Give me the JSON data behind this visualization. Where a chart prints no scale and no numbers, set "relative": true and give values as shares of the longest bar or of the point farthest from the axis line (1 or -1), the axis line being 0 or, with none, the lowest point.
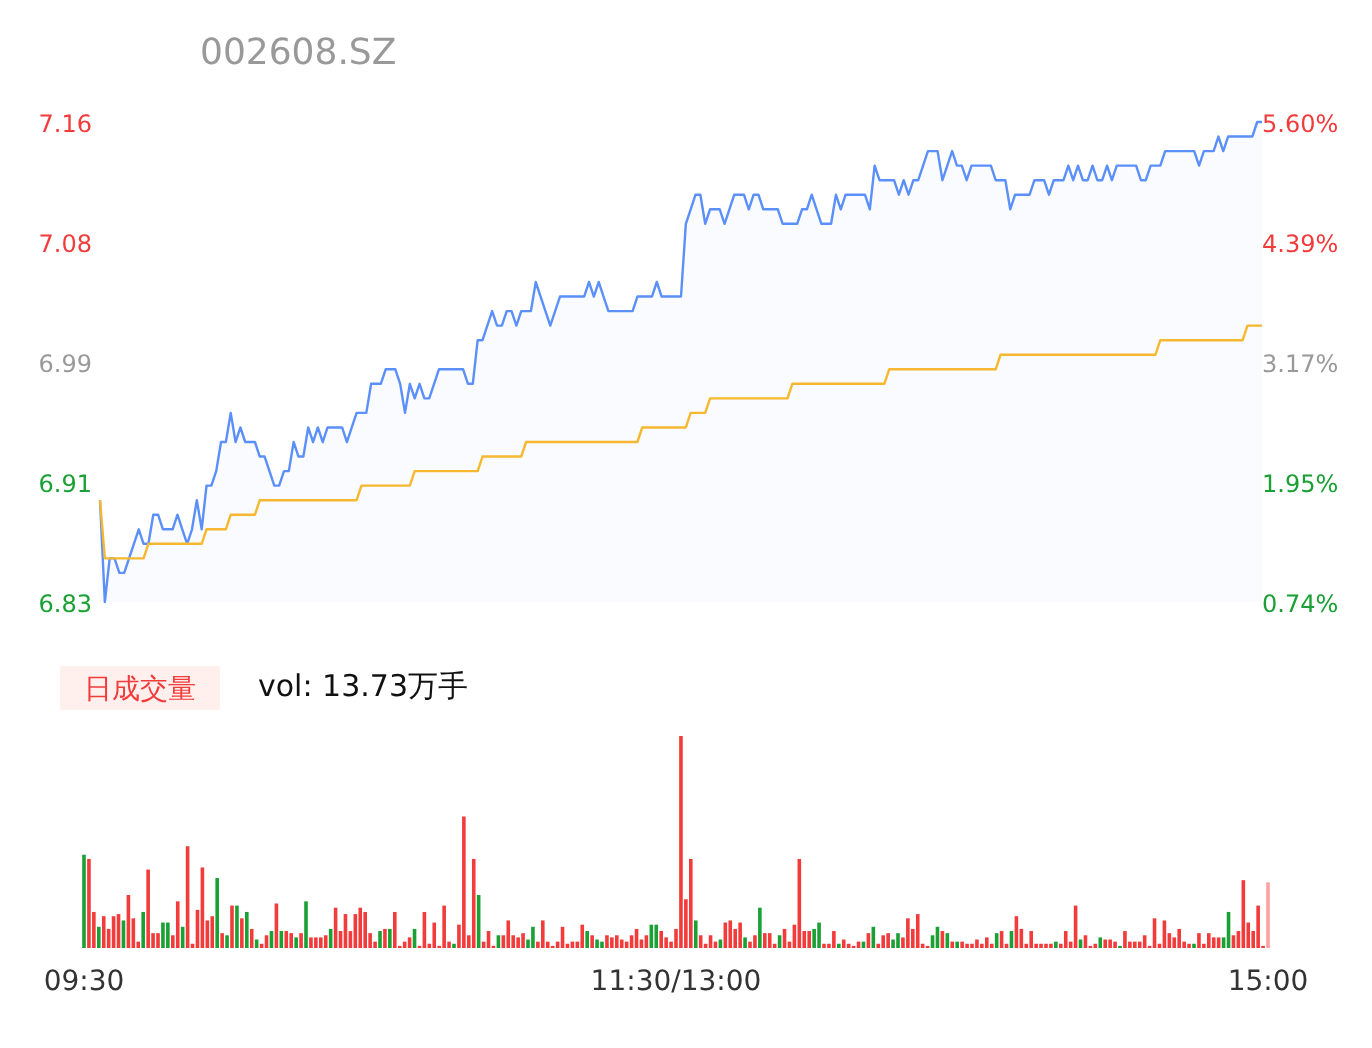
{
  "chart_data": [
    {
      "type": "line",
      "title": "002608.SZ",
      "tick_labels": "y",
      "ylim": [
        6.83,
        7.16
      ],
      "categories": [
        null,
        null,
        null,
        null,
        null,
        null,
        null,
        null,
        null,
        null,
        null,
        null,
        null,
        null,
        null,
        null,
        null,
        null,
        null,
        null,
        null,
        null,
        null,
        null,
        null,
        null,
        null,
        null,
        null,
        null,
        null,
        null,
        null,
        null,
        null,
        null,
        null,
        null,
        null,
        null,
        null,
        null,
        null,
        null,
        null,
        null,
        null,
        null,
        null,
        null,
        null,
        null,
        null,
        null,
        null,
        null,
        null,
        null,
        null,
        null,
        null,
        null,
        null,
        null,
        null,
        null,
        null,
        null,
        null,
        null,
        null,
        null,
        null,
        null,
        null,
        null,
        null,
        null,
        null,
        null,
        null,
        null,
        null,
        null,
        null,
        null,
        null,
        null,
        null,
        null,
        null,
        null,
        null,
        null,
        null,
        null,
        null,
        null,
        null,
        null,
        null,
        null,
        null,
        null,
        null,
        null,
        null,
        null,
        null,
        null,
        null,
        null,
        null,
        null,
        null,
        null,
        null,
        null,
        null,
        null,
        null,
        null,
        null,
        null,
        null,
        null,
        null,
        null,
        null,
        null,
        null,
        null,
        null,
        null,
        null,
        null,
        null,
        null,
        null,
        null,
        null,
        null,
        null,
        null,
        null,
        null,
        null,
        null,
        null,
        null,
        null,
        null,
        null,
        null,
        null,
        null,
        null,
        null,
        null,
        null,
        null,
        null,
        null,
        null,
        null,
        null,
        null,
        null,
        null,
        null,
        null,
        null,
        null,
        null,
        null,
        null,
        null,
        null,
        null,
        null,
        null,
        null,
        null,
        null,
        null,
        null,
        null,
        null,
        null,
        null,
        null,
        null,
        null,
        null,
        null,
        null,
        null,
        null,
        null,
        null,
        null,
        null,
        null,
        null,
        null,
        null,
        null,
        null,
        null,
        null,
        null,
        null,
        null,
        null,
        null,
        null,
        null,
        null,
        null,
        null,
        null,
        null,
        null,
        null,
        null,
        null,
        null,
        null,
        null,
        null,
        null,
        null,
        null,
        null,
        null,
        null,
        null,
        null,
        null,
        null,
        null
      ],
      "yticks": [
        {
          "value": 6.83,
          "label": "6.83"
        },
        {
          "value": 6.9125,
          "label": "6.91"
        },
        {
          "value": 6.995,
          "label": "6.99"
        },
        {
          "value": 7.0775,
          "label": "7.08"
        },
        {
          "value": 7.16,
          "label": "7.16"
        }
      ],
      "y2lim": [
        0.74,
        5.6
      ],
      "y2ticks": [
        {
          "value": 0.74,
          "label": "0.74%"
        },
        {
          "value": 1.955,
          "label": "1.95%"
        },
        {
          "value": 3.17,
          "label": "3.17%"
        },
        {
          "value": 4.385,
          "label": "4.39%"
        },
        {
          "value": 5.6,
          "label": "5.60%"
        }
      ],
      "series": [
        {
          "type": "area",
          "color": "#5b8ff9",
          "values": [
            6.9,
            6.83,
            6.86,
            6.86,
            6.85,
            6.85,
            6.86,
            6.87,
            6.88,
            6.87,
            6.87,
            6.89,
            6.89,
            6.88,
            6.88,
            6.88,
            6.89,
            6.88,
            6.87,
            6.88,
            6.9,
            6.88,
            6.91,
            6.91,
            6.92,
            6.94,
            6.94,
            6.96,
            6.94,
            6.95,
            6.94,
            6.94,
            6.94,
            6.93,
            6.93,
            6.92,
            6.91,
            6.91,
            6.92,
            6.92,
            6.94,
            6.93,
            6.93,
            6.95,
            6.94,
            6.95,
            6.94,
            6.95,
            6.95,
            6.95,
            6.95,
            6.94,
            6.95,
            6.96,
            6.96,
            6.96,
            6.98,
            6.98,
            6.98,
            6.99,
            6.99,
            6.99,
            6.98,
            6.96,
            6.98,
            6.97,
            6.98,
            6.97,
            6.97,
            6.98,
            6.99,
            6.99,
            6.99,
            6.99,
            6.99,
            6.99,
            6.98,
            6.98,
            7.01,
            7.01,
            7.02,
            7.03,
            7.02,
            7.02,
            7.03,
            7.03,
            7.02,
            7.03,
            7.03,
            7.03,
            7.05,
            7.04,
            7.03,
            7.02,
            7.03,
            7.04,
            7.04,
            7.04,
            7.04,
            7.04,
            7.04,
            7.05,
            7.04,
            7.05,
            7.04,
            7.03,
            7.03,
            7.03,
            7.03,
            7.03,
            7.03,
            7.04,
            7.04,
            7.04,
            7.04,
            7.05,
            7.04,
            7.04,
            7.04,
            7.04,
            7.04,
            7.09,
            7.1,
            7.11,
            7.11,
            7.09,
            7.1,
            7.1,
            7.1,
            7.09,
            7.1,
            7.11,
            7.11,
            7.11,
            7.1,
            7.11,
            7.11,
            7.1,
            7.1,
            7.1,
            7.1,
            7.09,
            7.09,
            7.09,
            7.09,
            7.1,
            7.1,
            7.11,
            7.1,
            7.09,
            7.09,
            7.09,
            7.11,
            7.1,
            7.11,
            7.11,
            7.11,
            7.11,
            7.11,
            7.1,
            7.13,
            7.12,
            7.12,
            7.12,
            7.12,
            7.11,
            7.12,
            7.11,
            7.12,
            7.12,
            7.13,
            7.14,
            7.14,
            7.14,
            7.12,
            7.13,
            7.14,
            7.13,
            7.13,
            7.12,
            7.13,
            7.13,
            7.13,
            7.13,
            7.13,
            7.12,
            7.12,
            7.12,
            7.1,
            7.11,
            7.11,
            7.11,
            7.11,
            7.12,
            7.12,
            7.12,
            7.11,
            7.12,
            7.12,
            7.12,
            7.13,
            7.12,
            7.13,
            7.12,
            7.12,
            7.13,
            7.12,
            7.12,
            7.13,
            7.12,
            7.13,
            7.13,
            7.13,
            7.13,
            7.13,
            7.12,
            7.12,
            7.13,
            7.13,
            7.13,
            7.14,
            7.14,
            7.14,
            7.14,
            7.14,
            7.14,
            7.14,
            7.13,
            7.14,
            7.14,
            7.14,
            7.15,
            7.14,
            7.15,
            7.15,
            7.15,
            7.15,
            7.15,
            7.15,
            7.16,
            7.16
          ]
        },
        {
          "type": "line",
          "color": "#f5b82e",
          "values": [
            6.9,
            6.86,
            6.86,
            6.86,
            6.86,
            6.86,
            6.86,
            6.86,
            6.86,
            6.86,
            6.87,
            6.87,
            6.87,
            6.87,
            6.87,
            6.87,
            6.87,
            6.87,
            6.87,
            6.87,
            6.87,
            6.87,
            6.88,
            6.88,
            6.88,
            6.88,
            6.88,
            6.89,
            6.89,
            6.89,
            6.89,
            6.89,
            6.89,
            6.9,
            6.9,
            6.9,
            6.9,
            6.9,
            6.9,
            6.9,
            6.9,
            6.9,
            6.9,
            6.9,
            6.9,
            6.9,
            6.9,
            6.9,
            6.9,
            6.9,
            6.9,
            6.9,
            6.9,
            6.9,
            6.91,
            6.91,
            6.91,
            6.91,
            6.91,
            6.91,
            6.91,
            6.91,
            6.91,
            6.91,
            6.91,
            6.92,
            6.92,
            6.92,
            6.92,
            6.92,
            6.92,
            6.92,
            6.92,
            6.92,
            6.92,
            6.92,
            6.92,
            6.92,
            6.92,
            6.93,
            6.93,
            6.93,
            6.93,
            6.93,
            6.93,
            6.93,
            6.93,
            6.93,
            6.94,
            6.94,
            6.94,
            6.94,
            6.94,
            6.94,
            6.94,
            6.94,
            6.94,
            6.94,
            6.94,
            6.94,
            6.94,
            6.94,
            6.94,
            6.94,
            6.94,
            6.94,
            6.94,
            6.94,
            6.94,
            6.94,
            6.94,
            6.94,
            6.95,
            6.95,
            6.95,
            6.95,
            6.95,
            6.95,
            6.95,
            6.95,
            6.95,
            6.95,
            6.96,
            6.96,
            6.96,
            6.96,
            6.97,
            6.97,
            6.97,
            6.97,
            6.97,
            6.97,
            6.97,
            6.97,
            6.97,
            6.97,
            6.97,
            6.97,
            6.97,
            6.97,
            6.97,
            6.97,
            6.97,
            6.98,
            6.98,
            6.98,
            6.98,
            6.98,
            6.98,
            6.98,
            6.98,
            6.98,
            6.98,
            6.98,
            6.98,
            6.98,
            6.98,
            6.98,
            6.98,
            6.98,
            6.98,
            6.98,
            6.98,
            6.99,
            6.99,
            6.99,
            6.99,
            6.99,
            6.99,
            6.99,
            6.99,
            6.99,
            6.99,
            6.99,
            6.99,
            6.99,
            6.99,
            6.99,
            6.99,
            6.99,
            6.99,
            6.99,
            6.99,
            6.99,
            6.99,
            6.99,
            7.0,
            7.0,
            7.0,
            7.0,
            7.0,
            7.0,
            7.0,
            7.0,
            7.0,
            7.0,
            7.0,
            7.0,
            7.0,
            7.0,
            7.0,
            7.0,
            7.0,
            7.0,
            7.0,
            7.0,
            7.0,
            7.0,
            7.0,
            7.0,
            7.0,
            7.0,
            7.0,
            7.0,
            7.0,
            7.0,
            7.0,
            7.0,
            7.0,
            7.01,
            7.01,
            7.01,
            7.01,
            7.01,
            7.01,
            7.01,
            7.01,
            7.01,
            7.01,
            7.01,
            7.01,
            7.01,
            7.01,
            7.01,
            7.01,
            7.01,
            7.01,
            7.02,
            7.02,
            7.02,
            7.02
          ]
        }
      ]
    },
    {
      "type": "bar",
      "title": "日成交量",
      "subtitle": "vol: 13.73万手",
      "relative": true,
      "categories": [
        "09:30",
        null,
        null,
        null,
        null,
        null,
        null,
        null,
        null,
        null,
        null,
        null,
        null,
        null,
        null,
        null,
        null,
        null,
        null,
        null,
        null,
        null,
        null,
        null,
        null,
        null,
        null,
        null,
        null,
        null,
        null,
        null,
        null,
        null,
        null,
        null,
        null,
        null,
        null,
        null,
        null,
        null,
        null,
        null,
        null,
        null,
        null,
        null,
        null,
        null,
        null,
        null,
        null,
        null,
        null,
        null,
        null,
        null,
        null,
        null,
        null,
        null,
        null,
        null,
        null,
        null,
        null,
        null,
        null,
        null,
        null,
        null,
        null,
        null,
        null,
        null,
        null,
        null,
        null,
        null,
        null,
        null,
        null,
        null,
        null,
        null,
        null,
        null,
        null,
        null,
        null,
        null,
        null,
        null,
        null,
        null,
        null,
        null,
        null,
        null,
        null,
        null,
        null,
        null,
        null,
        null,
        null,
        null,
        null,
        null,
        null,
        null,
        null,
        null,
        null,
        null,
        null,
        null,
        null,
        null,
        "11:30/13:00",
        null,
        null,
        null,
        null,
        null,
        null,
        null,
        null,
        null,
        null,
        null,
        null,
        null,
        null,
        null,
        null,
        null,
        null,
        null,
        null,
        null,
        null,
        null,
        null,
        null,
        null,
        null,
        null,
        null,
        null,
        null,
        null,
        null,
        null,
        null,
        null,
        null,
        null,
        null,
        null,
        null,
        null,
        null,
        null,
        null,
        null,
        null,
        null,
        null,
        null,
        null,
        null,
        null,
        null,
        null,
        null,
        null,
        null,
        null,
        null,
        null,
        null,
        null,
        null,
        null,
        null,
        null,
        null,
        null,
        null,
        null,
        null,
        null,
        null,
        null,
        null,
        null,
        null,
        null,
        null,
        null,
        null,
        null,
        null,
        null,
        null,
        null,
        null,
        null,
        null,
        null,
        null,
        null,
        null,
        null,
        null,
        null,
        null,
        null,
        null,
        null,
        null,
        null,
        null,
        null,
        null,
        null,
        null,
        null,
        null,
        null,
        null,
        null,
        null,
        null,
        null,
        null,
        null,
        null,
        "15:00"
      ],
      "values": [
        0.44,
        0.42,
        0.17,
        0.1,
        0.15,
        0.09,
        0.15,
        0.16,
        0.13,
        0.25,
        0.14,
        0.03,
        0.17,
        0.37,
        0.07,
        0.07,
        0.12,
        0.12,
        0.06,
        0.22,
        0.1,
        0.48,
        0.02,
        0.18,
        0.38,
        0.13,
        0.15,
        0.33,
        0.07,
        0.06,
        0.2,
        0.2,
        0.14,
        0.17,
        0.09,
        0.04,
        0.02,
        0.06,
        0.08,
        0.21,
        0.08,
        0.08,
        0.07,
        0.05,
        0.07,
        0.22,
        0.05,
        0.05,
        0.05,
        0.06,
        0.09,
        0.19,
        0.08,
        0.16,
        0.08,
        0.16,
        0.19,
        0.17,
        0.07,
        0.03,
        0.08,
        0.09,
        0.09,
        0.17,
        0.01,
        0.03,
        0.05,
        0.09,
        0.01,
        0.17,
        0.02,
        0.12,
        0.01,
        0.2,
        0.03,
        0.02,
        0.11,
        0.62,
        0.06,
        0.42,
        0.25,
        0.03,
        0.08,
        0.01,
        0.06,
        0.06,
        0.13,
        0.06,
        0.05,
        0.07,
        0.04,
        0.1,
        0.03,
        0.13,
        0.03,
        0.01,
        0.03,
        0.1,
        0.02,
        0.03,
        0.03,
        0.11,
        0.08,
        0.06,
        0.04,
        0.03,
        0.06,
        0.05,
        0.06,
        0.04,
        0.03,
        0.06,
        0.09,
        0.04,
        0.06,
        0.11,
        0.11,
        0.08,
        0.05,
        0.03,
        0.09,
        1.0,
        0.23,
        0.42,
        0.13,
        0.06,
        0.02,
        0.06,
        0.03,
        0.04,
        0.12,
        0.13,
        0.09,
        0.12,
        0.05,
        0.03,
        0.06,
        0.19,
        0.07,
        0.07,
        0.02,
        0.06,
        0.09,
        0.03,
        0.11,
        0.42,
        0.08,
        0.08,
        0.09,
        0.12,
        0.02,
        0.02,
        0.08,
        0.02,
        0.04,
        0.02,
        0.01,
        0.03,
        0.03,
        0.07,
        0.1,
        0.02,
        0.06,
        0.07,
        0.04,
        0.07,
        0.05,
        0.14,
        0.09,
        0.16,
        0.02,
        0.01,
        0.06,
        0.1,
        0.08,
        0.07,
        0.03,
        0.03,
        0.03,
        0.02,
        0.02,
        0.04,
        0.02,
        0.05,
        0.02,
        0.07,
        0.08,
        0.02,
        0.08,
        0.15,
        0.09,
        0.02,
        0.08,
        0.02,
        0.02,
        0.02,
        0.02,
        0.03,
        0.02,
        0.08,
        0.03,
        0.2,
        0.04,
        0.06,
        0.01,
        0.02,
        0.05,
        0.04,
        0.04,
        0.03,
        0.01,
        0.08,
        0.03,
        0.03,
        0.03,
        0.06,
        0.01,
        0.14,
        0.02,
        0.13,
        0.07,
        0.05,
        0.09,
        0.03,
        0.02,
        0.02,
        0.07,
        0.02,
        0.07,
        0.05,
        0.05,
        0.05,
        0.17,
        0.06,
        0.08,
        0.32,
        0.12,
        0.08,
        0.2,
        0.01,
        0.31
      ],
      "colors": [
        "#1aa034",
        "#f23b3b",
        "#f23b3b",
        "#1aa034",
        "#f23b3b",
        "#f23b3b",
        "#f23b3b",
        "#f23b3b",
        "#1aa034",
        "#f23b3b",
        "#f23b3b",
        "#f23b3b",
        "#1aa034",
        "#f23b3b",
        "#f23b3b",
        "#f23b3b",
        "#1aa034",
        "#1aa034",
        "#f23b3b",
        "#f23b3b",
        "#1aa034",
        "#f23b3b",
        "#f23b3b",
        "#f23b3b",
        "#f23b3b",
        "#f23b3b",
        "#f23b3b",
        "#1aa034",
        "#f23b3b",
        "#1aa034",
        "#f23b3b",
        "#1aa034",
        "#f23b3b",
        "#1aa034",
        "#f23b3b",
        "#1aa034",
        "#f23b3b",
        "#f23b3b",
        "#1aa034",
        "#f23b3b",
        "#1aa034",
        "#f23b3b",
        "#f23b3b",
        "#1aa034",
        "#f23b3b",
        "#1aa034",
        "#f23b3b",
        "#f23b3b",
        "#f23b3b",
        "#f23b3b",
        "#1aa034",
        "#f23b3b",
        "#f23b3b",
        "#f23b3b",
        "#f23b3b",
        "#f23b3b",
        "#f23b3b",
        "#f23b3b",
        "#f23b3b",
        "#f23b3b",
        "#1aa034",
        "#f23b3b",
        "#1aa034",
        "#f23b3b",
        "#f23b3b",
        "#f23b3b",
        "#f23b3b",
        "#1aa034",
        "#f23b3b",
        "#f23b3b",
        "#f23b3b",
        "#f23b3b",
        "#f23b3b",
        "#f23b3b",
        "#f23b3b",
        "#1aa034",
        "#f23b3b",
        "#f23b3b",
        "#f23b3b",
        "#f23b3b",
        "#1aa034",
        "#f23b3b",
        "#f23b3b",
        "#f23b3b",
        "#1aa034",
        "#f23b3b",
        "#f23b3b",
        "#f23b3b",
        "#f23b3b",
        "#f23b3b",
        "#1aa034",
        "#1aa034",
        "#f23b3b",
        "#f23b3b",
        "#f23b3b",
        "#f23b3b",
        "#f23b3b",
        "#f23b3b",
        "#f23b3b",
        "#f23b3b",
        "#f23b3b",
        "#f23b3b",
        "#1aa034",
        "#f23b3b",
        "#1aa034",
        "#1aa034",
        "#f23b3b",
        "#f23b3b",
        "#f23b3b",
        "#f23b3b",
        "#f23b3b",
        "#f23b3b",
        "#f23b3b",
        "#f23b3b",
        "#f23b3b",
        "#1aa034",
        "#1aa034",
        "#f23b3b",
        "#f23b3b",
        "#f23b3b",
        "#f23b3b",
        "#f23b3b",
        "#f23b3b",
        "#f23b3b",
        "#1aa034",
        "#f23b3b",
        "#f23b3b",
        "#f23b3b",
        "#f23b3b",
        "#1aa034",
        "#f23b3b",
        "#f23b3b",
        "#f23b3b",
        "#f23b3b",
        "#1aa034",
        "#f23b3b",
        "#f23b3b",
        "#1aa034",
        "#f23b3b",
        "#f23b3b",
        "#f23b3b",
        "#1aa034",
        "#f23b3b",
        "#f23b3b",
        "#f23b3b",
        "#f23b3b",
        "#f23b3b",
        "#f23b3b",
        "#1aa034",
        "#1aa034",
        "#f23b3b",
        "#f23b3b",
        "#f23b3b",
        "#1aa034",
        "#f23b3b",
        "#f23b3b",
        "#f23b3b",
        "#f23b3b",
        "#1aa034",
        "#f23b3b",
        "#1aa034",
        "#f23b3b",
        "#f23b3b",
        "#f23b3b",
        "#1aa034",
        "#1aa034",
        "#f23b3b",
        "#f23b3b",
        "#f23b3b",
        "#f23b3b",
        "#f23b3b",
        "#f23b3b",
        "#1aa034",
        "#1aa034",
        "#f23b3b",
        "#1aa034",
        "#f23b3b",
        "#1aa034",
        "#f23b3b",
        "#f23b3b",
        "#f23b3b",
        "#f23b3b",
        "#f23b3b",
        "#f23b3b",
        "#f23b3b",
        "#1aa034",
        "#f23b3b",
        "#f23b3b",
        "#1aa034",
        "#f23b3b",
        "#f23b3b",
        "#f23b3b",
        "#f23b3b",
        "#f23b3b",
        "#f23b3b",
        "#f23b3b",
        "#f23b3b",
        "#1aa034",
        "#f23b3b",
        "#f23b3b",
        "#f23b3b",
        "#f23b3b",
        "#1aa034",
        "#f23b3b",
        "#f23b3b",
        "#f23b3b",
        "#1aa034",
        "#f23b3b",
        "#f23b3b",
        "#f23b3b",
        "#1aa034",
        "#f23b3b",
        "#f23b3b",
        "#f23b3b",
        "#f23b3b",
        "#f23b3b",
        "#f23b3b",
        "#f23b3b",
        "#f23b3b",
        "#f23b3b",
        "#f23b3b",
        "#f23b3b",
        "#f23b3b",
        "#f23b3b",
        "#f23b3b",
        "#1aa034",
        "#f23b3b",
        "#f23b3b",
        "#f23b3b",
        "#f23b3b",
        "#f23b3b",
        "#1aa034",
        "#1aa034",
        "#f23b3b",
        "#f23b3b",
        "#f23b3b",
        "#f23b3b",
        "#f23b3b",
        "#f23b3b",
        "#f23b3b",
        "#ffa0a0"
      ]
    }
  ]
}
